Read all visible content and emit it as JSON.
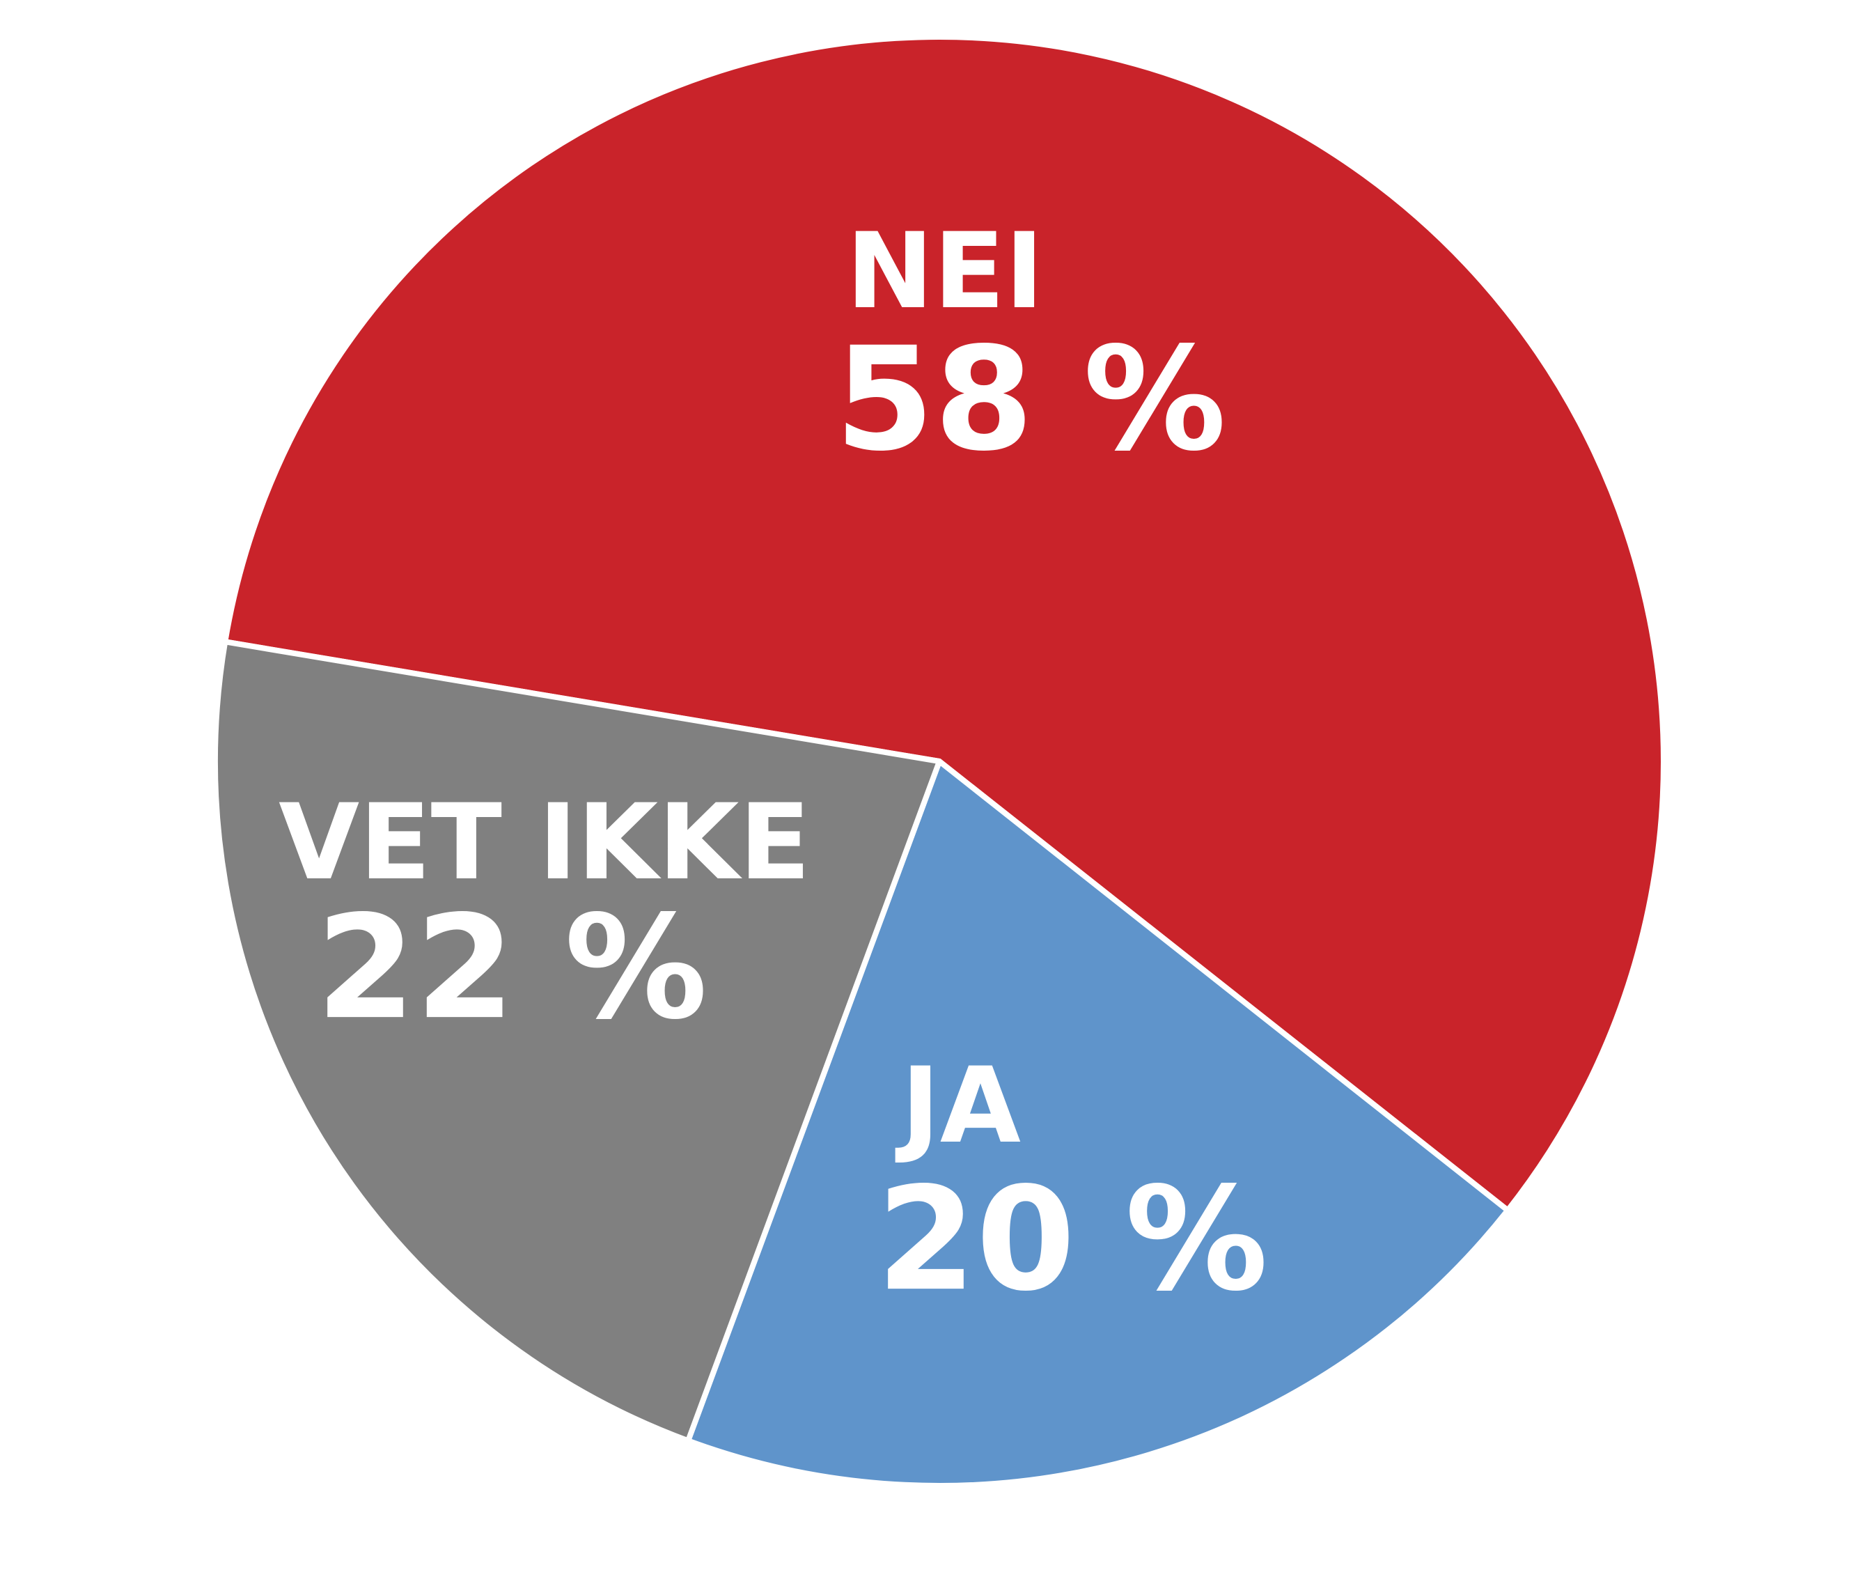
{
  "chart_data": {
    "type": "pie",
    "categories": [
      "NEI",
      "JA",
      "VET IKKE"
    ],
    "values": [
      58,
      20,
      22
    ],
    "value_labels": [
      "58 %",
      "20 %",
      "22 %"
    ],
    "colors": [
      "#c9232a",
      "#5f94cb",
      "#808080"
    ]
  }
}
